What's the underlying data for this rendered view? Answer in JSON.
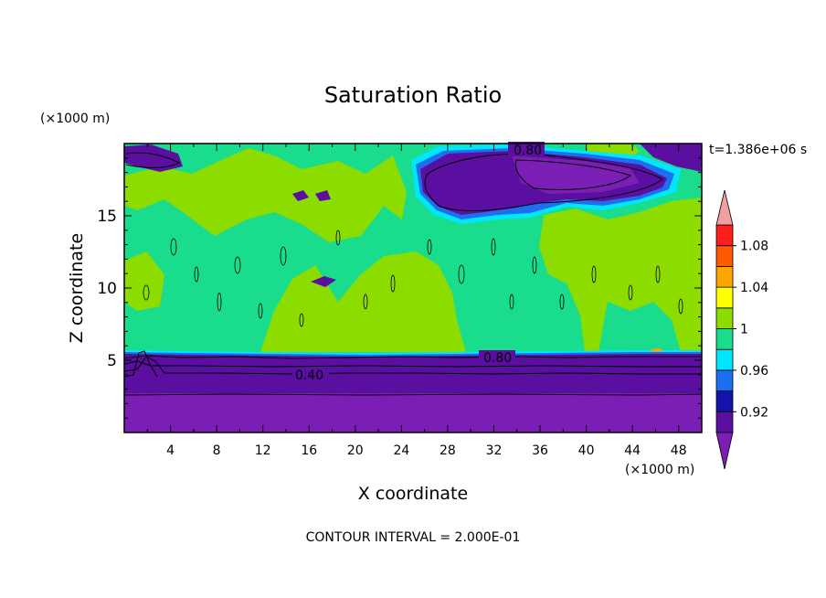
{
  "chart_data": {
    "type": "heatmap",
    "title": "Saturation Ratio",
    "time_label": "t=1.386e+06 s",
    "y_unit": "(×1000 m)",
    "x_unit": "(×1000 m)",
    "xlabel": "X coordinate",
    "ylabel": "Z coordinate",
    "footer": "CONTOUR INTERVAL = 2.000E-01",
    "xlim": [
      0,
      50
    ],
    "ylim": [
      0,
      20
    ],
    "x_ticks": [
      "4",
      "8",
      "12",
      "16",
      "20",
      "24",
      "28",
      "32",
      "36",
      "40",
      "44",
      "48"
    ],
    "y_ticks": [
      "5",
      "10",
      "15"
    ],
    "contour_labels": [
      {
        "text": "0.80",
        "x": 35,
        "z": 19.3
      },
      {
        "text": "0.80",
        "x": 33,
        "z": 5.1
      },
      {
        "text": "0.40",
        "x": 16,
        "z": 4.0
      }
    ],
    "colorbar": {
      "levels": [
        {
          "min": 0.9,
          "max": 0.92,
          "color": "#5a0fa0"
        },
        {
          "min": 0.92,
          "max": 0.94,
          "color": "#1414aa"
        },
        {
          "min": 0.94,
          "max": 0.96,
          "color": "#1e6ef0"
        },
        {
          "min": 0.96,
          "max": 0.98,
          "color": "#00e6ff"
        },
        {
          "min": 0.98,
          "max": 1.0,
          "color": "#19dc8c"
        },
        {
          "min": 1.0,
          "max": 1.02,
          "color": "#8cdc00"
        },
        {
          "min": 1.02,
          "max": 1.04,
          "color": "#ffff00"
        },
        {
          "min": 1.04,
          "max": 1.06,
          "color": "#ffa500"
        },
        {
          "min": 1.06,
          "max": 1.08,
          "color": "#ff5a00"
        },
        {
          "min": 1.08,
          "max": 1.1,
          "color": "#ff1e1e"
        }
      ],
      "over_color": "#f0a0a0",
      "under_color": "#7a1eb4",
      "tick_labels": [
        "0.92",
        "0.96",
        "1",
        "1.04",
        "1.08"
      ]
    }
  }
}
